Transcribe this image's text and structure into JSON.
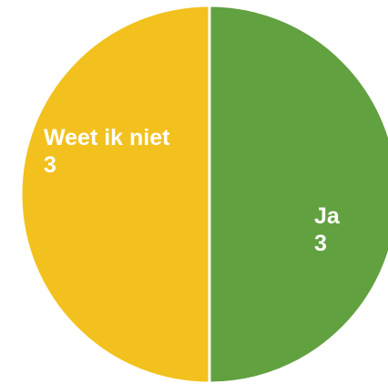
{
  "chart_data": {
    "type": "pie",
    "categories": [
      "Ja",
      "Weet ik niet"
    ],
    "values": [
      3,
      3
    ],
    "colors": [
      "#62A13F",
      "#F2C11E"
    ],
    "label_color": "#ffffff",
    "separator_color": "#ffffff"
  }
}
